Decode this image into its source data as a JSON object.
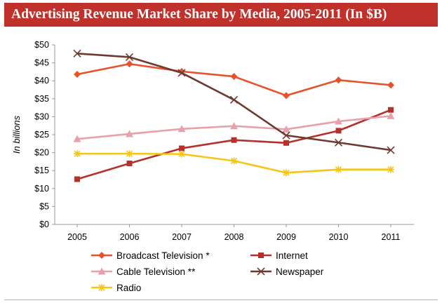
{
  "header": {
    "title": "Advertising Revenue Market Share by Media, 2005-2011 (In $B)"
  },
  "colors": {
    "title_bg": "#c0312b",
    "broadcast": "#e8522a",
    "internet": "#b7312c",
    "cable": "#e8a0ab",
    "newspaper": "#6e3a30",
    "radio": "#f5c518"
  },
  "chart_data": {
    "type": "line",
    "title": "Advertising Revenue Market Share by Media, 2005-2011 (In $B)",
    "xlabel": "",
    "ylabel": "In billions",
    "x": [
      "2005",
      "2006",
      "2007",
      "2008",
      "2009",
      "2010",
      "2011"
    ],
    "ylim": [
      0,
      50
    ],
    "yticks": [
      "$0",
      "$5",
      "$10",
      "$15",
      "$20",
      "$25",
      "$30",
      "$35",
      "$40",
      "$45",
      "$50"
    ],
    "grid": false,
    "legend_position": "bottom",
    "series": [
      {
        "name": "Broadcast Television *",
        "marker": "diamond",
        "color": "#e8522a",
        "values": [
          41.8,
          44.7,
          42.6,
          41.2,
          35.9,
          40.2,
          38.8
        ]
      },
      {
        "name": "Internet",
        "marker": "square",
        "color": "#b7312c",
        "values": [
          12.6,
          17.0,
          21.2,
          23.5,
          22.7,
          26.1,
          31.9
        ]
      },
      {
        "name": "Cable Television **",
        "marker": "triangle",
        "color": "#e8a0ab",
        "values": [
          23.8,
          25.2,
          26.6,
          27.4,
          26.5,
          28.7,
          30.2
        ]
      },
      {
        "name": "Newspaper",
        "marker": "x",
        "color": "#6e3a30",
        "values": [
          47.6,
          46.6,
          42.2,
          34.7,
          24.8,
          22.8,
          20.7
        ]
      },
      {
        "name": "Radio",
        "marker": "asterisk",
        "color": "#f5c518",
        "values": [
          19.7,
          19.7,
          19.6,
          17.7,
          14.4,
          15.3,
          15.3
        ]
      }
    ]
  }
}
